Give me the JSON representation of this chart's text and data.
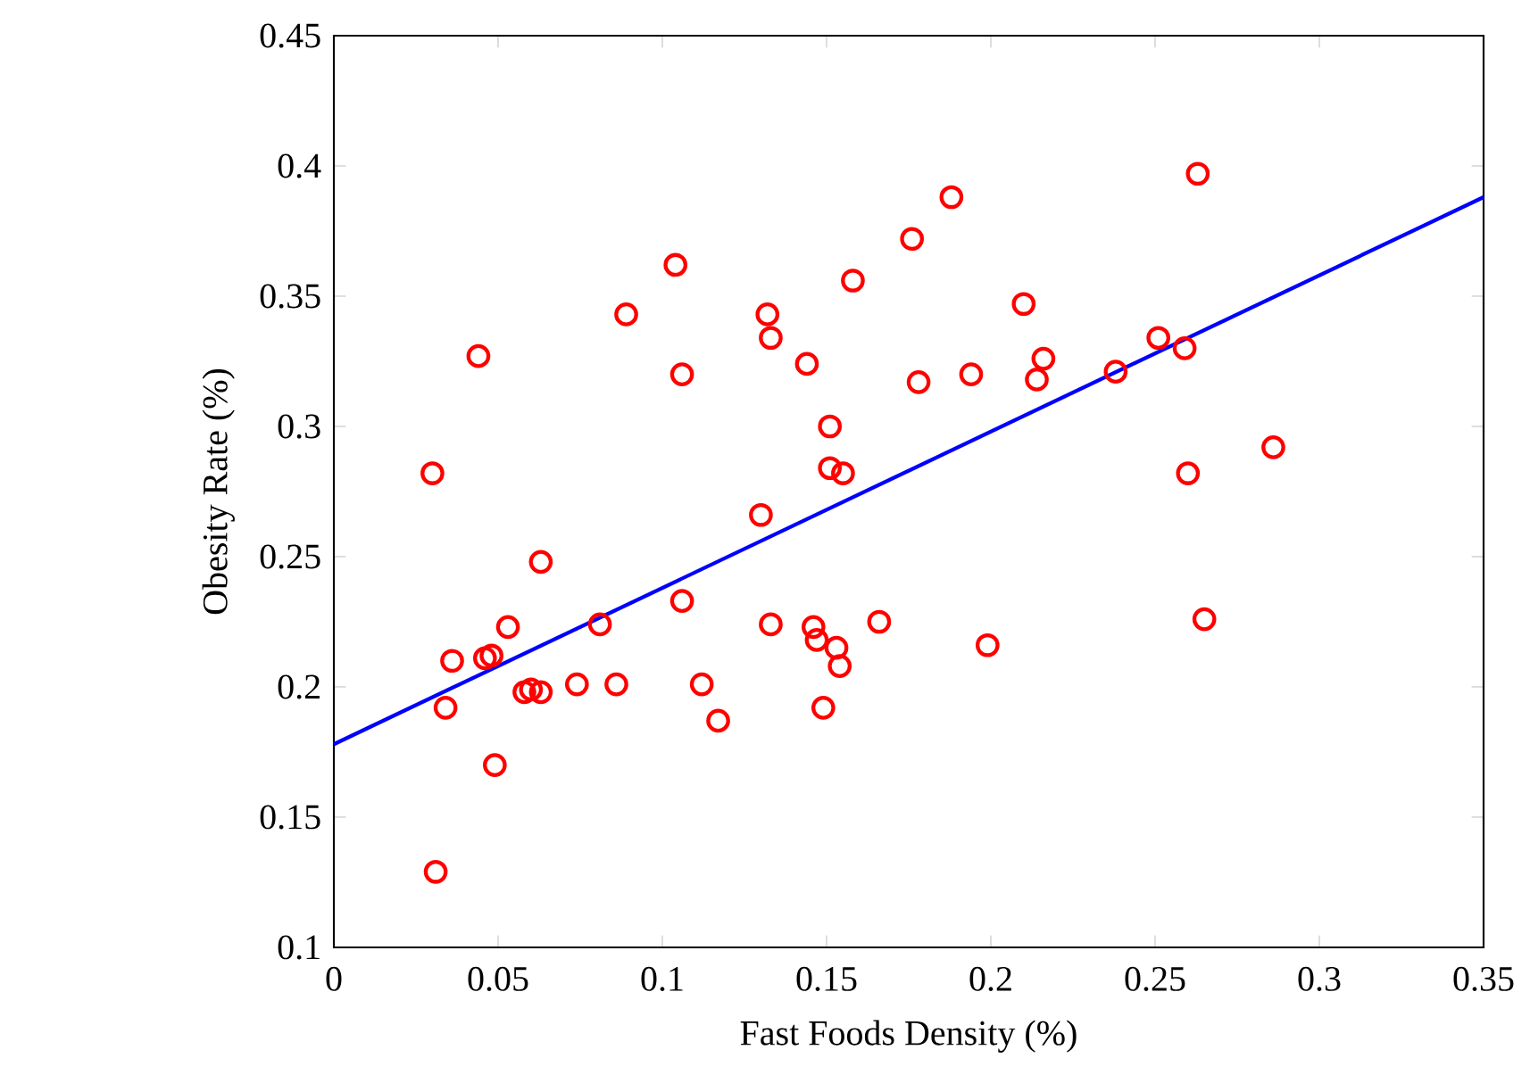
{
  "chart_data": {
    "type": "scatter",
    "xlabel": "Fast Foods Density (%)",
    "ylabel": "Obesity Rate (%)",
    "xlim": [
      0,
      0.35
    ],
    "ylim": [
      0.1,
      0.45
    ],
    "xticks": [
      0,
      0.05,
      0.1,
      0.15,
      0.2,
      0.25,
      0.3,
      0.35
    ],
    "yticks": [
      0.1,
      0.15,
      0.2,
      0.25,
      0.3,
      0.35,
      0.4,
      0.45
    ],
    "grid": false,
    "series": [
      {
        "marker": "circle",
        "color": "#ff0000",
        "x": [
          0.031,
          0.03,
          0.034,
          0.036,
          0.044,
          0.046,
          0.048,
          0.049,
          0.053,
          0.058,
          0.06,
          0.063,
          0.063,
          0.074,
          0.081,
          0.086,
          0.089,
          0.104,
          0.106,
          0.106,
          0.112,
          0.117,
          0.13,
          0.132,
          0.133,
          0.133,
          0.144,
          0.146,
          0.147,
          0.149,
          0.151,
          0.151,
          0.153,
          0.154,
          0.155,
          0.158,
          0.166,
          0.176,
          0.178,
          0.188,
          0.194,
          0.199,
          0.21,
          0.214,
          0.216,
          0.238,
          0.251,
          0.259,
          0.26,
          0.263,
          0.265,
          0.286
        ],
        "values": [
          0.129,
          0.282,
          0.192,
          0.21,
          0.327,
          0.211,
          0.212,
          0.17,
          0.223,
          0.198,
          0.199,
          0.198,
          0.248,
          0.201,
          0.224,
          0.201,
          0.343,
          0.362,
          0.233,
          0.32,
          0.201,
          0.187,
          0.266,
          0.343,
          0.334,
          0.224,
          0.324,
          0.223,
          0.218,
          0.192,
          0.284,
          0.3,
          0.215,
          0.208,
          0.282,
          0.356,
          0.225,
          0.372,
          0.317,
          0.388,
          0.32,
          0.216,
          0.347,
          0.318,
          0.326,
          0.321,
          0.334,
          0.33,
          0.282,
          0.397,
          0.226,
          0.292
        ]
      },
      {
        "type": "line",
        "marker": "none",
        "color": "#0000ff",
        "x": [
          0,
          0.35
        ],
        "values": [
          0.178,
          0.388
        ]
      }
    ]
  }
}
